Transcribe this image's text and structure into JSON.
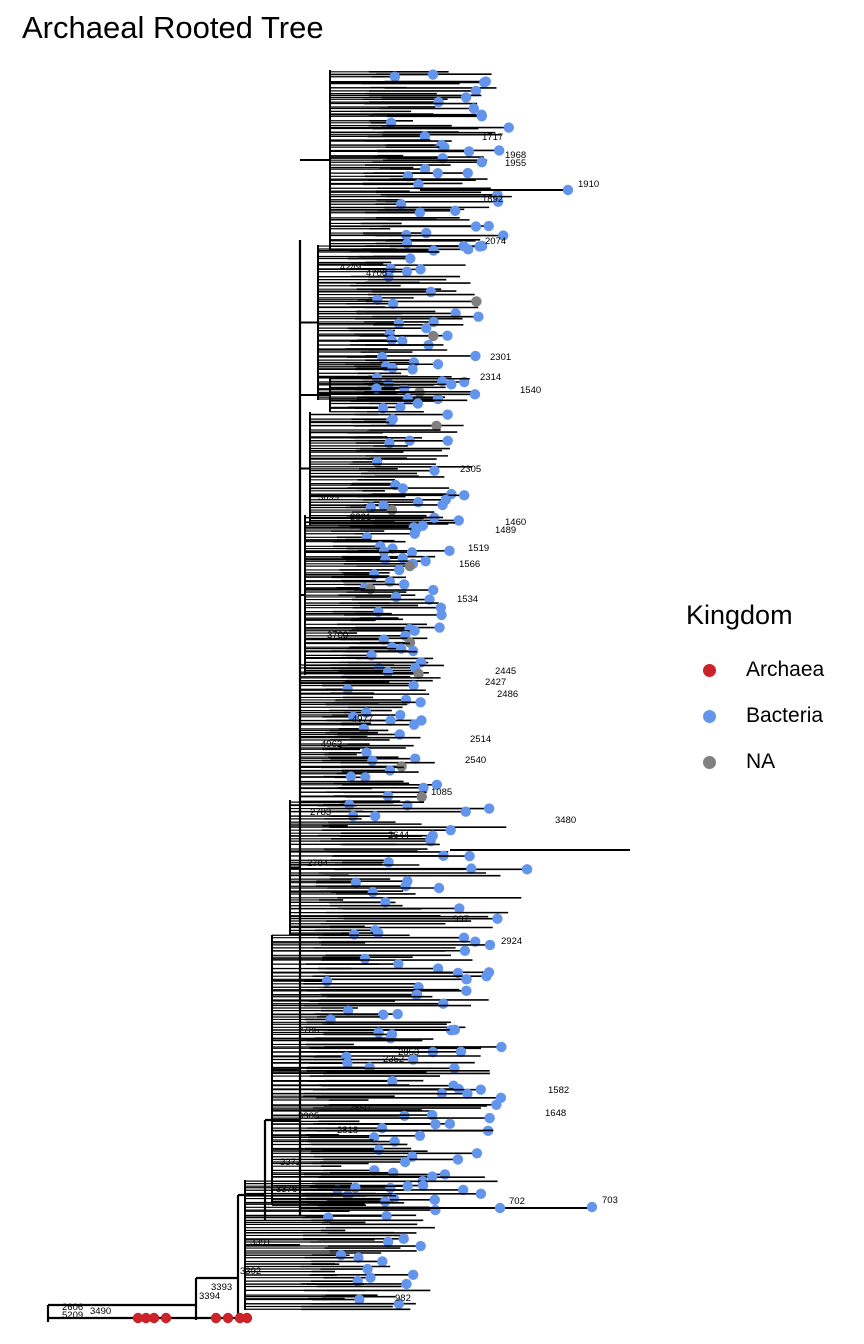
{
  "title": "Archaeal Rooted Tree",
  "legend": {
    "title": "Kingdom",
    "items": [
      {
        "label": "Archaea",
        "color": "#cc2229"
      },
      {
        "label": "Bacteria",
        "color": "#6495ed"
      },
      {
        "label": "NA",
        "color": "#808080"
      }
    ]
  },
  "tree": {
    "labels": [
      "1910",
      "1892",
      "1968",
      "1955",
      "1717",
      "2074",
      "4706",
      "4249",
      "2301",
      "2314",
      "1540",
      "3699",
      "2305",
      "3821",
      "1460",
      "1489",
      "1519",
      "1566",
      "1534",
      "3700",
      "2445",
      "2427",
      "2486",
      "4977",
      "4962",
      "2514",
      "2540",
      "1085",
      "2783",
      "2784",
      "2644",
      "3480",
      "997",
      "2786",
      "2924",
      "2853",
      "2352",
      "2850",
      "3305",
      "2818",
      "1582",
      "1648",
      "3372",
      "3376",
      "702",
      "703",
      "3391",
      "3392",
      "3393",
      "3394",
      "982",
      "2606",
      "5209",
      "3490"
    ]
  }
}
